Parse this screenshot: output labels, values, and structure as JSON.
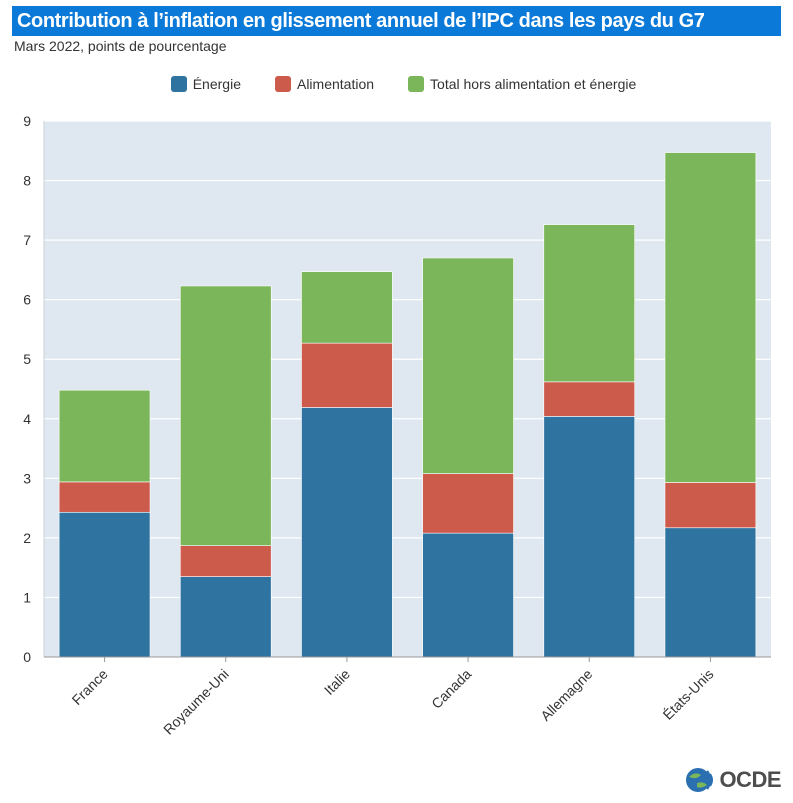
{
  "header": {
    "title": "Contribution à l’inflation en glissement annuel de l’IPC dans les pays du G7",
    "subtitle": "Mars 2022, points de pourcentage"
  },
  "logo": {
    "text": "OCDE"
  },
  "colors": {
    "title_bg": "#0b79d8",
    "plot_bg": "#dfe8f0",
    "energy": "#2f73a0",
    "food": "#cc5b4c",
    "core": "#7cb65a"
  },
  "chart_data": {
    "type": "bar",
    "stacked": true,
    "title": "Contribution à l’inflation en glissement annuel de l’IPC dans les pays du G7",
    "subtitle": "Mars 2022, points de pourcentage",
    "categories": [
      "France",
      "Royaume-Uni",
      "Italie",
      "Canada",
      "Allemagne",
      "États-Unis"
    ],
    "series": [
      {
        "name": "Énergie",
        "color": "#2f73a0",
        "values": [
          2.43,
          1.35,
          4.19,
          2.08,
          4.04,
          2.17
        ]
      },
      {
        "name": "Alimentation",
        "color": "#cc5b4c",
        "values": [
          0.51,
          0.52,
          1.08,
          1.0,
          0.58,
          0.76
        ]
      },
      {
        "name": "Total hors alimentation et énergie",
        "color": "#7cb65a",
        "values": [
          1.54,
          4.36,
          1.2,
          3.62,
          2.64,
          5.54
        ]
      }
    ],
    "ylim": [
      0,
      9
    ],
    "yticks": [
      0,
      1,
      2,
      3,
      4,
      5,
      6,
      7,
      8,
      9
    ],
    "xlabel": "",
    "ylabel": "",
    "grid": true,
    "legend_position": "top"
  }
}
